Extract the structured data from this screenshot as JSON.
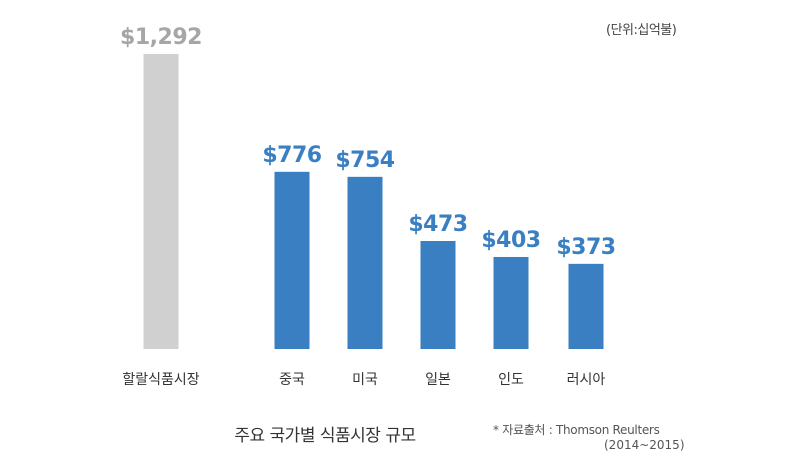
{
  "unit_note": "(단위:십억불)",
  "title": "주요 국가별 식품시장 규모",
  "source": "* 자료출처 : Thomson Reulters",
  "source_period": "(2014~2015)",
  "colors": {
    "highlight": "#d0d0d0",
    "highlight_label": "#a6a6a6",
    "bars": "#3a7fc2",
    "labels": "#3a7fc2"
  },
  "chart_data": {
    "type": "bar",
    "categories": [
      "할랄식품시장",
      "중국",
      "미국",
      "일본",
      "인도",
      "러시아"
    ],
    "values": [
      1292,
      776,
      754,
      473,
      403,
      373
    ],
    "value_labels": [
      "$1,292",
      "$776",
      "$754",
      "$473",
      "$403",
      "$373"
    ],
    "ylim": [
      0,
      1292
    ],
    "grid": false,
    "xlabel": "",
    "ylabel": ""
  }
}
